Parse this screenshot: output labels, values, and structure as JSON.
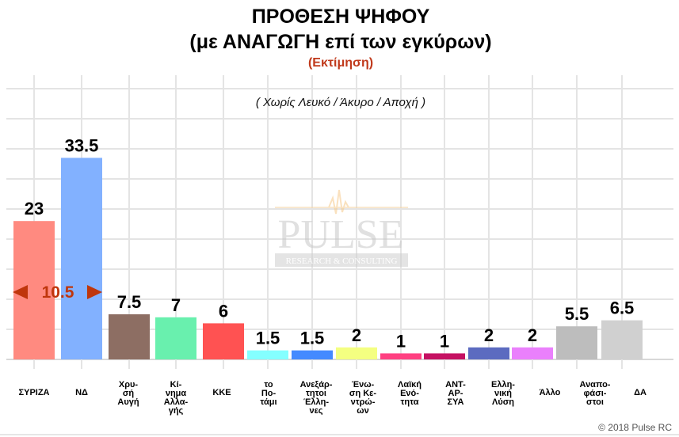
{
  "chart_data": {
    "type": "bar",
    "title": "ΠΡΟΘΕΣΗ ΨΗΦΟΥ",
    "title_line2": "(με ΑΝΑΓΩΓΗ επί των εγκύρων)",
    "subtitle": "(Εκτίμηση)",
    "note": "( Χωρίς Λευκό / Άκυρο / Αποχή )",
    "categories": [
      [
        "ΣΥΡΙΖΑ"
      ],
      [
        "ΝΔ"
      ],
      [
        "Χρυ-",
        "σή",
        "Αυγή"
      ],
      [
        "Κί-",
        "νημα",
        "Αλλα-",
        "γής"
      ],
      [
        "ΚΚΕ"
      ],
      [
        "το",
        "Πο-",
        "τάμι"
      ],
      [
        "Ανεξάρ-",
        "τητοι",
        "Έλλη-",
        "νες"
      ],
      [
        "Ένω-",
        "ση Κε-",
        "ντρώ-",
        "ων"
      ],
      [
        "Λαϊκή",
        "Ενό-",
        "τητα"
      ],
      [
        "ΑΝΤ-",
        "ΑΡ-",
        "ΣΥΑ"
      ],
      [
        "Ελλη-",
        "νική",
        "Λύση"
      ],
      [
        "Άλλο"
      ],
      [
        "Αναπο-",
        "φάσι-",
        "στοι"
      ],
      [
        "ΔΑ"
      ]
    ],
    "values": [
      23,
      33.5,
      7.5,
      7,
      6,
      1.5,
      1.5,
      2,
      1,
      1,
      2,
      2,
      5.5,
      6.5
    ],
    "value_labels": [
      "23",
      "33.5",
      "7.5",
      "7",
      "6",
      "1.5",
      "1.5",
      "2",
      "1",
      "1",
      "2",
      "2",
      "5.5",
      "6.5"
    ],
    "colors": [
      "#ff8a80",
      "#82b1ff",
      "#8d6e63",
      "#69f0ae",
      "#ff5252",
      "#84ffff",
      "#448aff",
      "#f4ff81",
      "#ff4081",
      "#c51162",
      "#5c6bc0",
      "#ea80fc",
      "#bdbdbd",
      "#d0d0d0"
    ],
    "difference_annotation": "10.5",
    "ylim": [
      0,
      45
    ],
    "grid": true,
    "legend": "none"
  },
  "watermark": {
    "brand": "PULSE",
    "tagline": "RESEARCH & CONSULTING"
  },
  "footer": {
    "copyright": "© 2018 Pulse RC"
  }
}
